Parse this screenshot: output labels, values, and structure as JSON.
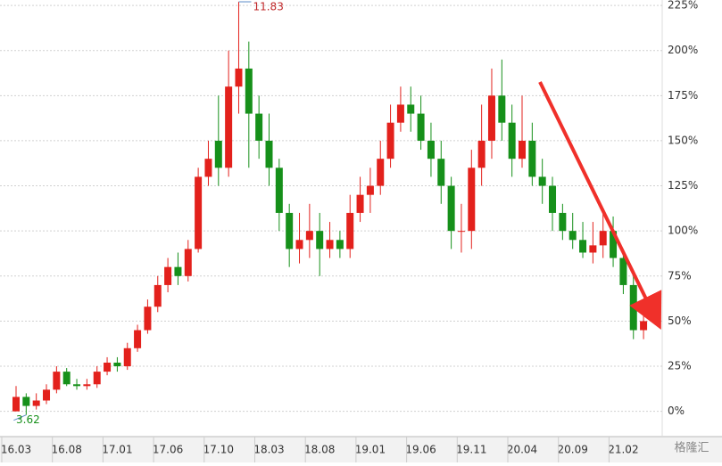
{
  "chart_data": {
    "type": "candlestick",
    "categories": [
      "16.03",
      null,
      null,
      null,
      null,
      "16.08",
      null,
      null,
      null,
      null,
      "17.01",
      null,
      null,
      null,
      null,
      "17.06",
      null,
      null,
      null,
      null,
      "17.10",
      null,
      null,
      null,
      null,
      "18.03",
      null,
      null,
      null,
      null,
      "18.08",
      null,
      null,
      null,
      null,
      "19.01",
      null,
      null,
      null,
      null,
      "19.06",
      null,
      null,
      null,
      null,
      "19.11",
      null,
      null,
      null,
      null,
      "20.04",
      null,
      null,
      null,
      null,
      "20.09",
      null,
      null,
      null,
      null,
      "21.02",
      null,
      null
    ],
    "open": [
      0,
      8,
      3,
      6,
      12,
      22,
      15,
      14,
      15,
      22,
      27,
      25,
      35,
      45,
      58,
      70,
      80,
      75,
      90,
      130,
      150,
      135,
      180,
      190,
      165,
      150,
      135,
      110,
      90,
      95,
      100,
      90,
      95,
      90,
      110,
      120,
      125,
      140,
      160,
      170,
      165,
      150,
      140,
      125,
      100,
      100,
      135,
      150,
      175,
      160,
      140,
      150,
      130,
      125,
      110,
      100,
      95,
      88,
      92,
      100,
      85,
      70,
      45
    ],
    "high": [
      14,
      10,
      10,
      15,
      25,
      24,
      18,
      18,
      25,
      30,
      30,
      38,
      48,
      62,
      75,
      85,
      88,
      95,
      135,
      150,
      175,
      200,
      227,
      205,
      175,
      165,
      140,
      115,
      110,
      115,
      110,
      105,
      100,
      120,
      130,
      135,
      150,
      170,
      180,
      180,
      175,
      160,
      150,
      130,
      115,
      145,
      170,
      190,
      195,
      170,
      175,
      160,
      140,
      130,
      115,
      110,
      105,
      105,
      110,
      108,
      90,
      75,
      55
    ],
    "low": [
      0,
      -2,
      1,
      4,
      10,
      14,
      12,
      12,
      13,
      20,
      22,
      23,
      33,
      43,
      55,
      66,
      70,
      72,
      88,
      125,
      125,
      130,
      165,
      135,
      140,
      125,
      100,
      80,
      82,
      85,
      75,
      85,
      85,
      85,
      105,
      110,
      120,
      135,
      155,
      155,
      145,
      130,
      115,
      90,
      88,
      90,
      125,
      140,
      150,
      130,
      135,
      125,
      115,
      100,
      95,
      90,
      85,
      82,
      85,
      80,
      65,
      40,
      40
    ],
    "close": [
      8,
      3,
      6,
      12,
      22,
      15,
      14,
      15,
      22,
      27,
      25,
      35,
      45,
      58,
      70,
      80,
      75,
      90,
      130,
      140,
      135,
      180,
      190,
      165,
      150,
      135,
      110,
      90,
      95,
      100,
      90,
      95,
      90,
      110,
      120,
      125,
      140,
      160,
      170,
      165,
      150,
      140,
      125,
      100,
      100,
      135,
      150,
      175,
      160,
      140,
      150,
      130,
      125,
      110,
      100,
      95,
      88,
      92,
      100,
      85,
      70,
      45,
      50
    ],
    "up_color": "#e3211c",
    "down_color": "#16901a",
    "ylim": [
      -14,
      228
    ],
    "yticks": [
      {
        "value": 0,
        "label": "0%"
      },
      {
        "value": 25,
        "label": "25%"
      },
      {
        "value": 50,
        "label": "50%"
      },
      {
        "value": 75,
        "label": "75%"
      },
      {
        "value": 100,
        "label": "100%"
      },
      {
        "value": 125,
        "label": "125%"
      },
      {
        "value": 150,
        "label": "150%"
      },
      {
        "value": 175,
        "label": "175%"
      },
      {
        "value": 200,
        "label": "200%"
      },
      {
        "value": 225,
        "label": "225%"
      }
    ],
    "grid": true,
    "high_label": "11.83",
    "low_label": "3.62",
    "watermark": "格隆汇"
  }
}
